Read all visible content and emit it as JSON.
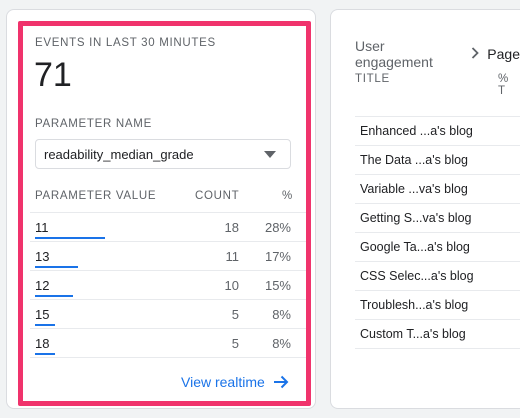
{
  "left_card": {
    "events_label": "EVENTS IN LAST 30 MINUTES",
    "events_count": "71",
    "parameter_name_label": "PARAMETER NAME",
    "parameter_select_value": "readability_median_grade",
    "table": {
      "headers": {
        "value": "PARAMETER VALUE",
        "count": "COUNT",
        "pct": "%"
      },
      "rows": [
        {
          "value": "11",
          "count": "18",
          "pct": "28%",
          "share": 0.28
        },
        {
          "value": "13",
          "count": "11",
          "pct": "17%",
          "share": 0.17
        },
        {
          "value": "12",
          "count": "10",
          "pct": "15%",
          "share": 0.15
        },
        {
          "value": "15",
          "count": "5",
          "pct": "8%",
          "share": 0.08
        },
        {
          "value": "18",
          "count": "5",
          "pct": "8%",
          "share": 0.08
        }
      ]
    },
    "view_realtime_label": "View realtime"
  },
  "right_card": {
    "breadcrumb": {
      "current": "User engagement",
      "next": "Page"
    },
    "headers": {
      "title": "TITLE",
      "pct": "% T"
    },
    "rows": [
      "Enhanced ...a's blog",
      "The Data ...a's blog",
      "Variable ...va's blog",
      "Getting S...va's blog",
      "Google Ta...a's blog",
      "CSS Selec...a's blog",
      "Troublesh...a's blog",
      "Custom T...a's blog"
    ]
  },
  "colors": {
    "accent": "#1a73e8",
    "highlight": "#f0336c"
  }
}
